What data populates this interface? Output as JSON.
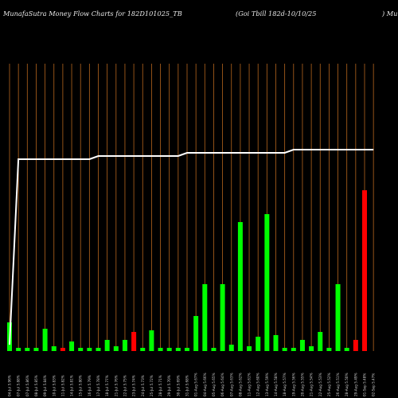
{
  "header": {
    "left": "MunafaSutra  Money Flow  Charts for 182D101025_TB",
    "middle": "(Goi   Tbill 182d-10/10/25",
    "right": ") Munafa"
  },
  "colors": {
    "background": "#000000",
    "gridline": "#b5651d",
    "line": "#ffffff",
    "up": "#00ff00",
    "down": "#ff0000"
  },
  "chart_data": {
    "type": "bar",
    "title": "",
    "x": [
      "04-Jul 5.96%",
      "07-Jul 5.88%",
      "07-Jul 5.86%",
      "08-Jul 5.85%",
      "09-Jul 5.84%",
      "10-Jul 5.83%",
      "11-Jul 5.82%",
      "14-Jul 5.81%",
      "15-Jul 5.80%",
      "16-Jul 5.79%",
      "17-Jul 5.78%",
      "18-Jul 5.77%",
      "21-Jul 5.76%",
      "22-Jul 5.75%",
      "23-Jul 5.74%",
      "24-Jul 5.73%",
      "25-Jul 5.72%",
      "28-Jul 5.71%",
      "29-Jul 5.70%",
      "30-Jul 5.69%",
      "31-Jul 5.68%",
      "01-Aug 5.67%",
      "04-Aug 5.66%",
      "05-Aug 5.65%",
      "06-Aug 5.64%",
      "07-Aug 5.63%",
      "08-Aug 5.62%",
      "11-Aug 5.61%",
      "12-Aug 5.60%",
      "13-Aug 5.59%",
      "14-Aug 5.58%",
      "18-Aug 5.57%",
      "19-Aug 5.56%",
      "20-Aug 5.55%",
      "21-Aug 5.54%",
      "22-Aug 5.53%",
      "25-Aug 5.52%",
      "26-Aug 5.51%",
      "28-Aug 5.50%",
      "29-Aug 5.49%",
      "01-Sep 5.48%",
      "02-Sep 5.47%"
    ],
    "bars": {
      "values": [
        18,
        2,
        2,
        2,
        14,
        3,
        2,
        6,
        2,
        2,
        2,
        7,
        3,
        7,
        12,
        2,
        13,
        2,
        2,
        2,
        2,
        22,
        42,
        2,
        42,
        4,
        81,
        3,
        9,
        86,
        10,
        2,
        2,
        7,
        3,
        12,
        2,
        42,
        2,
        7,
        101,
        0
      ],
      "colors": [
        "up",
        "up",
        "up",
        "up",
        "up",
        "up",
        "down",
        "up",
        "up",
        "up",
        "up",
        "up",
        "up",
        "up",
        "down",
        "up",
        "up",
        "up",
        "up",
        "up",
        "up",
        "up",
        "up",
        "up",
        "up",
        "up",
        "up",
        "up",
        "up",
        "up",
        "up",
        "up",
        "up",
        "up",
        "up",
        "up",
        "up",
        "up",
        "up",
        "down",
        "down",
        "down"
      ]
    },
    "line": {
      "values": [
        2,
        60,
        60,
        60,
        60,
        60,
        60,
        60,
        60,
        60,
        61,
        61,
        61,
        61,
        61,
        61,
        61,
        61,
        61,
        61,
        62,
        62,
        62,
        62,
        62,
        62,
        62,
        62,
        62,
        62,
        62,
        62,
        63,
        63,
        63,
        63,
        63,
        63,
        63,
        63,
        63,
        63
      ]
    },
    "ylim": [
      0,
      100
    ],
    "grid": "vertical"
  }
}
